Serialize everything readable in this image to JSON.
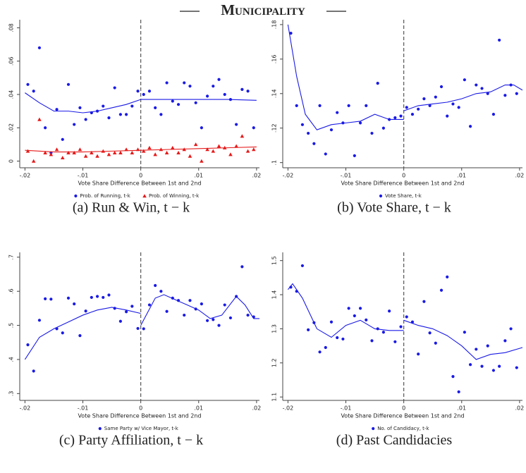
{
  "title": "Municipality",
  "chart_data": [
    {
      "type": "scatter",
      "caption": "(a) Run & Win, t − k",
      "xlabel": "Vote Share Difference Between 1st and 2nd",
      "xlim": [
        -0.0209,
        0.0205
      ],
      "ylim": [
        -0.004,
        0.084
      ],
      "cutoff": 0,
      "xticks": [
        {
          "value": -0.02,
          "label": "-.02"
        },
        {
          "value": -0.01,
          "label": "-.01"
        },
        0,
        {
          "value": 0.01,
          "label": ".01"
        },
        {
          "value": 0.02,
          "label": ".02"
        }
      ],
      "yticks": [
        0,
        {
          "value": 0.02,
          "label": ".02"
        },
        {
          "value": 0.04,
          "label": ".04"
        },
        {
          "value": 0.06,
          "label": ".06"
        },
        {
          "value": 0.08,
          "label": ".08"
        }
      ],
      "x": [
        -0.0195,
        -0.0185,
        -0.0175,
        -0.0165,
        -0.0155,
        -0.0145,
        -0.0135,
        -0.0125,
        -0.0115,
        -0.0105,
        -0.0095,
        -0.0085,
        -0.0075,
        -0.0065,
        -0.0055,
        -0.0045,
        -0.0035,
        -0.0025,
        -0.0015,
        -0.0005,
        0.0005,
        0.0015,
        0.0025,
        0.0035,
        0.0045,
        0.0055,
        0.0065,
        0.0075,
        0.0085,
        0.0095,
        0.0105,
        0.0115,
        0.0125,
        0.0135,
        0.0145,
        0.0155,
        0.0165,
        0.0175,
        0.0185,
        0.0195
      ],
      "series": [
        {
          "name": "Prob. of Running, t-k",
          "color": "#1a1ae6",
          "marker": "circle",
          "values": [
            0.046,
            0.042,
            0.068,
            0.02,
            0.005,
            0.031,
            0.013,
            0.046,
            0.022,
            0.032,
            0.025,
            0.029,
            0.03,
            0.033,
            0.026,
            0.044,
            0.028,
            0.028,
            0.033,
            0.042,
            0.04,
            0.042,
            0.032,
            0.028,
            0.047,
            0.036,
            0.034,
            0.047,
            0.045,
            0.035,
            0.02,
            0.039,
            0.045,
            0.049,
            0.04,
            0.037,
            0.022,
            0.043,
            0.042,
            0.02
          ]
        },
        {
          "name": "Prob. of Winning, t-k",
          "color": "#e61a1a",
          "marker": "triangle",
          "values": [
            0.006,
            0.0,
            0.025,
            0.005,
            0.004,
            0.007,
            0.002,
            0.005,
            0.005,
            0.007,
            0.003,
            0.005,
            0.003,
            0.006,
            0.004,
            0.005,
            0.005,
            0.007,
            0.005,
            0.007,
            0.006,
            0.008,
            0.004,
            0.007,
            0.005,
            0.008,
            0.005,
            0.007,
            0.003,
            0.01,
            0.0,
            0.007,
            0.006,
            0.009,
            0.008,
            0.004,
            0.009,
            0.015,
            0.006,
            0.007
          ]
        }
      ],
      "fit_lines": [
        {
          "color": "#1a1ae6",
          "x": [
            -0.02,
            -0.0175,
            -0.015,
            -0.0125,
            -0.01,
            -0.0075,
            -0.005,
            -0.0025,
            0
          ],
          "values": [
            0.041,
            0.035,
            0.03,
            0.03,
            0.029,
            0.03,
            0.032,
            0.034,
            0.037
          ]
        },
        {
          "color": "#1a1ae6",
          "x": [
            0,
            0.005,
            0.01,
            0.015,
            0.02
          ],
          "values": [
            0.037,
            0.037,
            0.037,
            0.037,
            0.0365
          ]
        },
        {
          "color": "#e61a1a",
          "x": [
            -0.02,
            -0.015,
            -0.01,
            -0.005,
            0
          ],
          "values": [
            0.0065,
            0.0055,
            0.0055,
            0.006,
            0.0065
          ]
        },
        {
          "color": "#e61a1a",
          "x": [
            0,
            0.005,
            0.01,
            0.015,
            0.02
          ],
          "values": [
            0.0065,
            0.007,
            0.0075,
            0.008,
            0.0085
          ]
        }
      ]
    },
    {
      "type": "scatter",
      "caption": "(b) Vote Share, t − k",
      "xlabel": "Vote Share Difference Between 1st and 2nd",
      "xlim": [
        -0.0209,
        0.0205
      ],
      "ylim": [
        0.097,
        0.182
      ],
      "cutoff": 0,
      "xticks": [
        {
          "value": -0.02,
          "label": "-.02"
        },
        {
          "value": -0.01,
          "label": "-.01"
        },
        0,
        {
          "value": 0.01,
          "label": ".01"
        },
        {
          "value": 0.02,
          "label": ".02"
        }
      ],
      "yticks": [
        {
          "value": 0.1,
          "label": ".1"
        },
        {
          "value": 0.12,
          "label": ".12"
        },
        {
          "value": 0.14,
          "label": ".14"
        },
        {
          "value": 0.16,
          "label": ".16"
        },
        {
          "value": 0.18,
          "label": ".18"
        }
      ],
      "x": [
        -0.0195,
        -0.0185,
        -0.0175,
        -0.0165,
        -0.0155,
        -0.0145,
        -0.0135,
        -0.0125,
        -0.0115,
        -0.0105,
        -0.0095,
        -0.0085,
        -0.0075,
        -0.0065,
        -0.0055,
        -0.0045,
        -0.0035,
        -0.0025,
        -0.0015,
        -0.0005,
        0.0005,
        0.0015,
        0.0025,
        0.0035,
        0.0045,
        0.0055,
        0.0065,
        0.0075,
        0.0085,
        0.0095,
        0.0105,
        0.0115,
        0.0125,
        0.0135,
        0.0145,
        0.0155,
        0.0165,
        0.0175,
        0.0185,
        0.0195
      ],
      "series": [
        {
          "name": "Vote Share, t-k",
          "color": "#1a1ae6",
          "marker": "circle",
          "values": [
            0.175,
            0.133,
            0.122,
            0.117,
            0.111,
            0.133,
            0.105,
            0.119,
            0.129,
            0.123,
            0.133,
            0.104,
            0.123,
            0.133,
            0.117,
            0.146,
            0.12,
            0.125,
            0.126,
            0.127,
            0.132,
            0.128,
            0.131,
            0.137,
            0.133,
            0.138,
            0.144,
            0.127,
            0.134,
            0.132,
            0.148,
            0.121,
            0.145,
            0.143,
            0.14,
            0.128,
            0.171,
            0.139,
            0.145,
            0.14
          ]
        }
      ],
      "fit_lines": [
        {
          "color": "#1a1ae6",
          "x": [
            -0.02,
            -0.0185,
            -0.017,
            -0.015,
            -0.0125,
            -0.01,
            -0.0075,
            -0.005,
            -0.0025,
            0
          ],
          "values": [
            0.18,
            0.15,
            0.128,
            0.119,
            0.122,
            0.123,
            0.124,
            0.128,
            0.125,
            0.125
          ]
        },
        {
          "color": "#1a1ae6",
          "x": [
            0,
            0.0025,
            0.005,
            0.0075,
            0.01,
            0.0125,
            0.015,
            0.0175,
            0.019,
            0.0205
          ],
          "values": [
            0.13,
            0.133,
            0.134,
            0.135,
            0.137,
            0.14,
            0.141,
            0.145,
            0.145,
            0.142
          ]
        }
      ]
    },
    {
      "type": "scatter",
      "caption": "(c) Party Affiliation, t − k",
      "xlabel": "Vote Share Difference Between 1st and 2nd",
      "xlim": [
        -0.0209,
        0.0205
      ],
      "ylim": [
        0.28,
        0.71
      ],
      "cutoff": 0,
      "xticks": [
        {
          "value": -0.02,
          "label": "-.02"
        },
        {
          "value": -0.01,
          "label": "-.01"
        },
        0,
        {
          "value": 0.01,
          "label": ".01"
        },
        {
          "value": 0.02,
          "label": ".02"
        }
      ],
      "yticks": [
        {
          "value": 0.3,
          "label": ".3"
        },
        {
          "value": 0.4,
          "label": ".4"
        },
        {
          "value": 0.5,
          "label": ".5"
        },
        {
          "value": 0.6,
          "label": ".6"
        },
        {
          "value": 0.7,
          "label": ".7"
        }
      ],
      "x": [
        -0.0195,
        -0.0185,
        -0.0175,
        -0.0165,
        -0.0155,
        -0.0145,
        -0.0135,
        -0.0125,
        -0.0115,
        -0.0105,
        -0.0095,
        -0.0085,
        -0.0075,
        -0.0065,
        -0.0055,
        -0.0045,
        -0.0035,
        -0.0025,
        -0.0015,
        -0.0005,
        0.0005,
        0.0015,
        0.0025,
        0.0035,
        0.0045,
        0.0055,
        0.0065,
        0.0075,
        0.0085,
        0.0095,
        0.0105,
        0.0115,
        0.0125,
        0.0135,
        0.0145,
        0.0155,
        0.0165,
        0.0175,
        0.0185,
        0.0195
      ],
      "series": [
        {
          "name": "Same Party w/ Vice Mayor, t-k",
          "color": "#1a1ae6",
          "marker": "circle",
          "values": [
            0.443,
            0.366,
            0.515,
            0.578,
            0.577,
            0.49,
            0.478,
            0.58,
            0.563,
            0.47,
            0.542,
            0.582,
            0.585,
            0.582,
            0.589,
            0.55,
            0.512,
            0.54,
            0.556,
            0.491,
            0.49,
            0.56,
            0.617,
            0.6,
            0.541,
            0.58,
            0.573,
            0.53,
            0.573,
            0.548,
            0.563,
            0.514,
            0.517,
            0.5,
            0.56,
            0.522,
            0.585,
            0.672,
            0.53,
            0.525
          ]
        }
      ],
      "fit_lines": [
        {
          "color": "#1a1ae6",
          "x": [
            -0.02,
            -0.0175,
            -0.015,
            -0.0125,
            -0.01,
            -0.0075,
            -0.005,
            -0.0025,
            0
          ],
          "values": [
            0.4,
            0.465,
            0.49,
            0.51,
            0.53,
            0.545,
            0.553,
            0.545,
            0.535
          ]
        },
        {
          "color": "#1a1ae6",
          "x": [
            0,
            0.0025,
            0.004,
            0.006,
            0.008,
            0.01,
            0.012,
            0.014,
            0.0165,
            0.018,
            0.0195,
            0.0205
          ],
          "values": [
            0.5,
            0.58,
            0.59,
            0.575,
            0.56,
            0.545,
            0.52,
            0.53,
            0.585,
            0.56,
            0.52,
            0.52
          ]
        }
      ]
    },
    {
      "type": "scatter",
      "caption": "(d) Past Candidacies",
      "xlabel": "Vote Share Difference Between 1st and 2nd",
      "xlim": [
        -0.0209,
        0.0205
      ],
      "ylim": [
        1.09,
        1.52
      ],
      "cutoff": 0,
      "xticks": [
        {
          "value": -0.02,
          "label": "-.02"
        },
        {
          "value": -0.01,
          "label": "-.01"
        },
        0,
        {
          "value": 0.01,
          "label": ".01"
        },
        {
          "value": 0.02,
          "label": ".02"
        }
      ],
      "yticks": [
        1.1,
        1.2,
        1.3,
        1.4,
        1.5
      ],
      "x": [
        -0.0195,
        -0.0185,
        -0.0175,
        -0.0165,
        -0.0155,
        -0.0145,
        -0.0135,
        -0.0125,
        -0.0115,
        -0.0105,
        -0.0095,
        -0.0085,
        -0.0075,
        -0.0065,
        -0.0055,
        -0.0045,
        -0.0035,
        -0.0025,
        -0.0015,
        -0.0005,
        0.0005,
        0.0015,
        0.0025,
        0.0035,
        0.0045,
        0.0055,
        0.0065,
        0.0075,
        0.0085,
        0.0095,
        0.0105,
        0.0115,
        0.0125,
        0.0135,
        0.0145,
        0.0155,
        0.0165,
        0.0175,
        0.0185,
        0.0195
      ],
      "series": [
        {
          "name": "No. of Candidacy, t-k",
          "color": "#1a1ae6",
          "marker": "circle",
          "values": [
            1.422,
            1.41,
            1.485,
            1.297,
            1.318,
            1.232,
            1.245,
            1.32,
            1.274,
            1.27,
            1.36,
            1.338,
            1.36,
            1.326,
            1.265,
            1.3,
            1.29,
            1.352,
            1.262,
            1.306,
            1.335,
            1.32,
            1.226,
            1.38,
            1.288,
            1.258,
            1.413,
            1.452,
            1.16,
            1.115,
            1.29,
            1.195,
            1.24,
            1.19,
            1.25,
            1.178,
            1.19,
            1.265,
            1.3,
            1.186
          ]
        }
      ],
      "fit_lines": [
        {
          "color": "#1a1ae6",
          "x": [
            -0.02,
            -0.0192,
            -0.0175,
            -0.015,
            -0.0125,
            -0.01,
            -0.0075,
            -0.005,
            -0.0025,
            0
          ],
          "values": [
            1.415,
            1.432,
            1.39,
            1.3,
            1.275,
            1.31,
            1.325,
            1.3,
            1.295,
            1.295
          ]
        },
        {
          "color": "#1a1ae6",
          "x": [
            0,
            0.0025,
            0.005,
            0.0075,
            0.01,
            0.0125,
            0.015,
            0.0175,
            0.0205
          ],
          "values": [
            1.325,
            1.31,
            1.3,
            1.28,
            1.25,
            1.21,
            1.225,
            1.23,
            1.245
          ]
        }
      ]
    }
  ]
}
